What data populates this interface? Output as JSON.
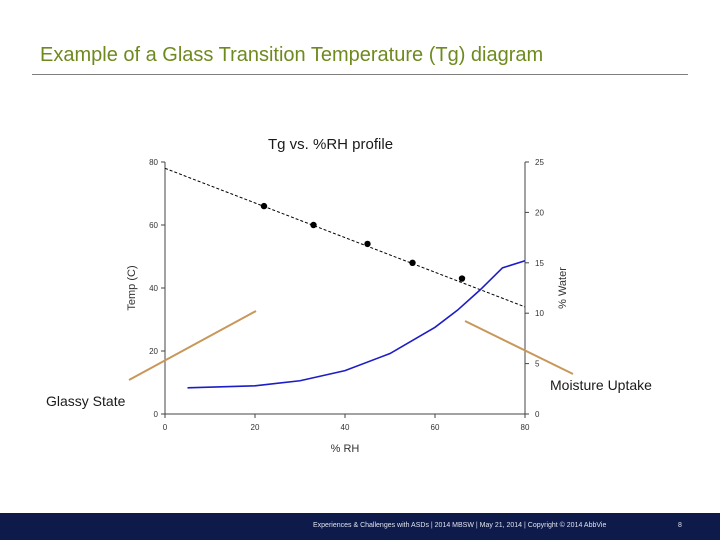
{
  "slide": {
    "title": "Example of a Glass Transition Temperature (Tg) diagram",
    "chart_title": "Tg vs. %RH profile",
    "callouts": {
      "glassy": "Glassy State",
      "moisture": "Moisture Uptake"
    },
    "footer": {
      "text": "Experiences & Challenges with ASDs | 2014 MBSW | May 21, 2014 | Copyright © 2014 AbbVie",
      "page": "8"
    }
  },
  "colors": {
    "title": "#6e8a1e",
    "callout_arrow": "#c8975a",
    "uptake_curve": "#1c1cc8",
    "tg_line": "#000000",
    "footer_bg": "#0d1a4a"
  },
  "chart_data": {
    "type": "line",
    "title": "Tg vs. %RH profile",
    "xlabel": "% RH",
    "ylabel_left": "Temp (C)",
    "ylabel_right": "% Water",
    "xlim": [
      0,
      80
    ],
    "ylim_left": [
      0,
      80
    ],
    "ylim_right": [
      0,
      25
    ],
    "x_ticks": [
      "0",
      "20",
      "40",
      "60",
      "80"
    ],
    "y_left_ticks": [
      "0",
      "20",
      "40",
      "60",
      "80"
    ],
    "y_right_ticks": [
      "0",
      "5",
      "10",
      "15",
      "20",
      "25"
    ],
    "series": [
      {
        "axis": "left",
        "style": "dashed",
        "color": "#000000",
        "x": [
          0,
          80
        ],
        "y": [
          78,
          34
        ],
        "points": [
          {
            "x": 22,
            "y": 66
          },
          {
            "x": 33,
            "y": 60
          },
          {
            "x": 45,
            "y": 54
          },
          {
            "x": 55,
            "y": 48
          },
          {
            "x": 66,
            "y": 43
          }
        ]
      },
      {
        "axis": "right",
        "style": "solid",
        "color": "#1c1cc8",
        "x": [
          5,
          20,
          30,
          40,
          50,
          60,
          65,
          70,
          75,
          80
        ],
        "y": [
          2.6,
          2.8,
          3.3,
          4.3,
          6.0,
          8.6,
          10.3,
          12.3,
          14.5,
          15.2
        ]
      }
    ]
  }
}
